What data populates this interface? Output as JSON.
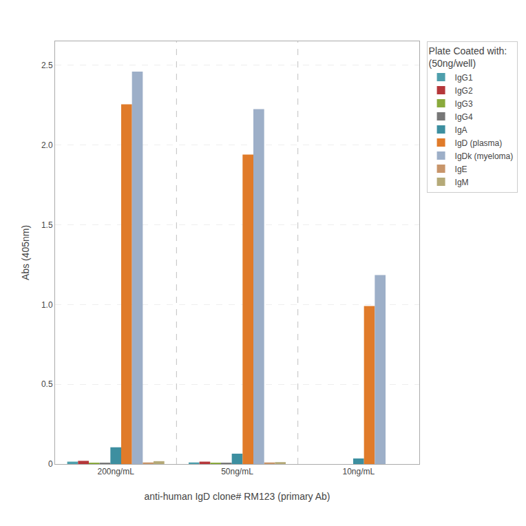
{
  "chart_data": {
    "type": "bar",
    "xlabel": "anti-human IgD clone# RM123 (primary Ab)",
    "ylabel": "Abs (405nm)",
    "legend_title": "Plate Coated with:\n(50ng/well)",
    "categories": [
      "200ng/mL",
      "50ng/mL",
      "10ng/mL"
    ],
    "series": [
      {
        "name": "IgG1",
        "color": "#4e9fac",
        "values": [
          0.015,
          0.01,
          0.0
        ]
      },
      {
        "name": "IgG2",
        "color": "#b5373a",
        "values": [
          0.02,
          0.015,
          0.0
        ]
      },
      {
        "name": "IgG3",
        "color": "#8aaa3c",
        "values": [
          0.005,
          0.005,
          0.0
        ]
      },
      {
        "name": "IgG4",
        "color": "#777777",
        "values": [
          0.005,
          0.005,
          0.0
        ]
      },
      {
        "name": "IgA",
        "color": "#3d8fa0",
        "values": [
          0.105,
          0.065,
          0.035
        ]
      },
      {
        "name": "IgD (plasma)",
        "color": "#e07b2a",
        "values": [
          2.255,
          1.94,
          0.99
        ]
      },
      {
        "name": "IgDk (myeloma)",
        "color": "#9dafc8",
        "values": [
          2.46,
          2.225,
          1.185
        ]
      },
      {
        "name": "IgE",
        "color": "#c8956a",
        "values": [
          0.01,
          0.01,
          0.0
        ]
      },
      {
        "name": "IgM",
        "color": "#b5aa78",
        "values": [
          0.018,
          0.012,
          0.0
        ]
      }
    ],
    "ylim": [
      0,
      2.65
    ],
    "yticks": [
      0,
      0.5,
      {
        "value": 1,
        "label": "1.0"
      },
      1.5,
      {
        "value": 2,
        "label": "2.0"
      },
      2.5
    ],
    "grid": true,
    "legend": "right"
  }
}
